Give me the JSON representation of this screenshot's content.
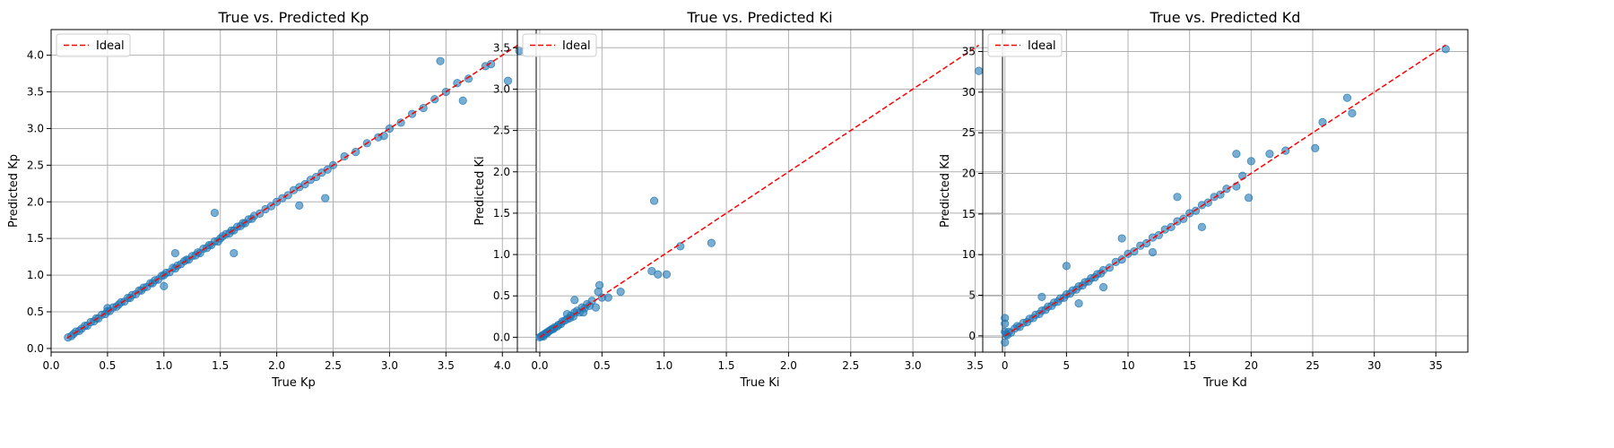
{
  "chart_data": [
    {
      "type": "scatter",
      "title": "True vs. Predicted Kp",
      "xlabel": "True Kp",
      "ylabel": "Predicted Kp",
      "xlim": [
        0.0,
        4.3
      ],
      "ylim": [
        -0.05,
        4.35
      ],
      "xticks": [
        "0.0",
        "0.5",
        "1.0",
        "1.5",
        "2.0",
        "2.5",
        "3.0",
        "3.5",
        "4.0"
      ],
      "yticks": [
        "0.0",
        "0.5",
        "1.0",
        "1.5",
        "2.0",
        "2.5",
        "3.0",
        "3.5",
        "4.0"
      ],
      "grid": true,
      "legend": {
        "position": "top-left",
        "entries": [
          "Ideal"
        ]
      },
      "ideal_line": {
        "from": [
          0.14,
          0.14
        ],
        "to": [
          4.15,
          4.15
        ],
        "color": "#ff0000",
        "style": "dashed"
      },
      "series": [
        {
          "color": "#1f77b4",
          "x": [
            0.15,
            0.18,
            0.2,
            0.22,
            0.25,
            0.27,
            0.3,
            0.32,
            0.35,
            0.38,
            0.4,
            0.42,
            0.45,
            0.48,
            0.5,
            0.52,
            0.55,
            0.58,
            0.6,
            0.62,
            0.65,
            0.68,
            0.7,
            0.72,
            0.75,
            0.78,
            0.8,
            0.82,
            0.85,
            0.88,
            0.9,
            0.92,
            0.95,
            0.98,
            1.0,
            1.02,
            1.05,
            1.08,
            1.1,
            1.12,
            1.15,
            1.18,
            1.2,
            1.22,
            1.25,
            1.28,
            1.3,
            1.32,
            1.35,
            1.38,
            1.4,
            1.42,
            1.45,
            1.48,
            1.5,
            1.52,
            1.55,
            1.58,
            1.6,
            1.62,
            1.65,
            1.68,
            1.7,
            1.72,
            1.75,
            1.78,
            1.8,
            1.85,
            1.9,
            1.95,
            2.0,
            2.05,
            2.1,
            2.15,
            2.2,
            2.25,
            2.3,
            2.35,
            2.4,
            2.45,
            2.5,
            2.6,
            2.7,
            2.8,
            2.9,
            3.0,
            3.1,
            3.2,
            3.3,
            3.4,
            3.5,
            3.6,
            3.7,
            3.85,
            3.9,
            4.05,
            4.15,
            0.5,
            1.1,
            1.45,
            2.43,
            2.2,
            1.0,
            1.62,
            3.45,
            2.95,
            3.65
          ],
          "y": [
            0.15,
            0.17,
            0.2,
            0.23,
            0.24,
            0.27,
            0.31,
            0.31,
            0.36,
            0.37,
            0.41,
            0.41,
            0.46,
            0.47,
            0.51,
            0.51,
            0.56,
            0.57,
            0.6,
            0.63,
            0.64,
            0.69,
            0.69,
            0.73,
            0.74,
            0.79,
            0.79,
            0.83,
            0.84,
            0.89,
            0.89,
            0.93,
            0.94,
            0.99,
            1.0,
            1.03,
            1.04,
            1.1,
            1.09,
            1.13,
            1.15,
            1.19,
            1.21,
            1.21,
            1.26,
            1.27,
            1.31,
            1.3,
            1.36,
            1.37,
            1.41,
            1.41,
            1.46,
            1.46,
            1.5,
            1.53,
            1.56,
            1.57,
            1.61,
            1.61,
            1.66,
            1.67,
            1.71,
            1.71,
            1.76,
            1.77,
            1.81,
            1.84,
            1.9,
            1.94,
            2.0,
            2.05,
            2.09,
            2.16,
            2.2,
            2.24,
            2.3,
            2.34,
            2.4,
            2.44,
            2.5,
            2.62,
            2.68,
            2.8,
            2.88,
            3.0,
            3.08,
            3.2,
            3.28,
            3.4,
            3.5,
            3.62,
            3.68,
            3.85,
            3.88,
            3.65,
            4.06,
            0.55,
            1.3,
            1.85,
            2.05,
            1.95,
            0.85,
            1.3,
            3.92,
            2.9,
            3.38
          ]
        }
      ]
    },
    {
      "type": "scatter",
      "title": "True vs. Predicted Ki",
      "xlabel": "True Ki",
      "ylabel": "Predicted Ki",
      "xlim": [
        -0.18,
        3.72
      ],
      "ylim": [
        -0.18,
        3.72
      ],
      "xticks": [
        "0.0",
        "0.5",
        "1.0",
        "1.5",
        "2.0",
        "2.5",
        "3.0",
        "3.5"
      ],
      "yticks": [
        "0.0",
        "0.5",
        "1.0",
        "1.5",
        "2.0",
        "2.5",
        "3.0",
        "3.5"
      ],
      "grid": true,
      "legend": {
        "position": "top-left",
        "entries": [
          "Ideal"
        ]
      },
      "ideal_line": {
        "from": [
          0.0,
          0.0
        ],
        "to": [
          3.53,
          3.53
        ],
        "color": "#ff0000",
        "style": "dashed"
      },
      "series": [
        {
          "color": "#1f77b4",
          "x": [
            0.0,
            0.01,
            0.02,
            0.03,
            0.04,
            0.05,
            0.06,
            0.07,
            0.08,
            0.09,
            0.1,
            0.12,
            0.14,
            0.15,
            0.17,
            0.18,
            0.2,
            0.22,
            0.24,
            0.25,
            0.27,
            0.28,
            0.3,
            0.32,
            0.34,
            0.36,
            0.38,
            0.4,
            0.42,
            0.45,
            0.47,
            0.48,
            0.5,
            0.55,
            0.65,
            0.9,
            0.92,
            0.95,
            1.02,
            1.13,
            1.38,
            3.53,
            0.03,
            0.06,
            0.11,
            0.22,
            0.28,
            0.35
          ],
          "y": [
            0.0,
            0.01,
            0.02,
            0.03,
            0.04,
            0.05,
            0.06,
            0.07,
            0.08,
            0.09,
            0.1,
            0.12,
            0.13,
            0.15,
            0.16,
            0.19,
            0.2,
            0.22,
            0.23,
            0.26,
            0.25,
            0.3,
            0.32,
            0.3,
            0.36,
            0.35,
            0.4,
            0.38,
            0.44,
            0.36,
            0.55,
            0.63,
            0.48,
            0.48,
            0.55,
            0.8,
            1.65,
            0.76,
            0.76,
            1.1,
            1.14,
            3.22,
            0.01,
            0.05,
            0.1,
            0.28,
            0.45,
            0.3
          ]
        }
      ]
    },
    {
      "type": "scatter",
      "title": "True vs. Predicted Kd",
      "xlabel": "True Kd",
      "ylabel": "Predicted Kd",
      "xlim": [
        -1.8,
        37.6
      ],
      "ylim": [
        -2.0,
        37.7
      ],
      "xticks": [
        "0",
        "5",
        "10",
        "15",
        "20",
        "25",
        "30",
        "35"
      ],
      "yticks": [
        "0",
        "5",
        "10",
        "15",
        "20",
        "25",
        "30",
        "35"
      ],
      "grid": true,
      "legend": {
        "position": "top-left",
        "entries": [
          "Ideal"
        ]
      },
      "ideal_line": {
        "from": [
          0.0,
          0.0
        ],
        "to": [
          35.8,
          35.8
        ],
        "color": "#ff0000",
        "style": "dashed"
      },
      "series": [
        {
          "color": "#1f77b4",
          "x": [
            0.0,
            0.0,
            0.0,
            0.0,
            0.1,
            0.2,
            0.3,
            0.5,
            0.8,
            1.0,
            1.2,
            1.5,
            1.8,
            2.0,
            2.3,
            2.5,
            2.8,
            3.0,
            3.3,
            3.5,
            3.8,
            4.0,
            4.3,
            4.5,
            4.8,
            5.0,
            5.3,
            5.5,
            5.8,
            6.0,
            6.3,
            6.5,
            6.8,
            7.0,
            7.3,
            7.5,
            7.8,
            8.0,
            8.5,
            9.0,
            9.5,
            10.0,
            10.5,
            11.0,
            11.5,
            12.0,
            12.5,
            13.0,
            13.5,
            14.0,
            14.5,
            15.0,
            15.5,
            16.0,
            16.5,
            17.0,
            17.5,
            18.0,
            18.8,
            19.3,
            20.0,
            21.5,
            22.8,
            25.2,
            25.8,
            27.8,
            28.2,
            35.8,
            5.0,
            6.0,
            9.5,
            18.8,
            12.0,
            14.0,
            3.0,
            8.0,
            16.0,
            19.8
          ],
          "y": [
            -0.8,
            0.5,
            1.5,
            2.2,
            0.2,
            0.1,
            0.5,
            0.4,
            0.9,
            1.2,
            1.1,
            1.6,
            1.7,
            2.1,
            2.2,
            2.6,
            2.7,
            3.1,
            3.2,
            3.6,
            3.7,
            4.1,
            4.2,
            4.6,
            4.7,
            5.1,
            5.2,
            5.6,
            5.7,
            6.1,
            6.2,
            6.6,
            6.7,
            7.1,
            7.2,
            7.6,
            7.7,
            8.1,
            8.4,
            9.1,
            9.4,
            10.1,
            10.4,
            11.1,
            11.4,
            12.1,
            12.4,
            13.1,
            13.4,
            14.1,
            14.4,
            15.1,
            15.4,
            16.1,
            16.4,
            17.1,
            17.4,
            18.1,
            18.4,
            19.7,
            21.5,
            22.4,
            22.8,
            23.1,
            26.3,
            29.3,
            27.4,
            35.3,
            8.6,
            4.0,
            12.0,
            22.4,
            10.3,
            17.1,
            4.8,
            6.0,
            13.4,
            17.0
          ]
        }
      ]
    }
  ]
}
